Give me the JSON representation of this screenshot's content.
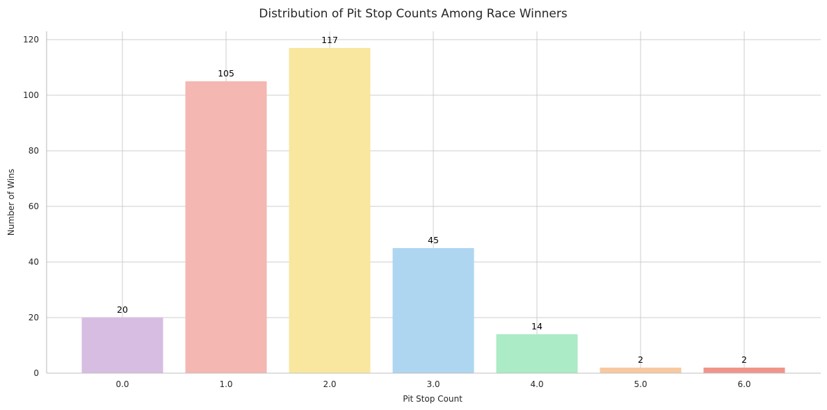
{
  "chart_data": {
    "type": "bar",
    "title": "Distribution of Pit Stop Counts Among Race Winners",
    "xlabel": "Pit Stop Count",
    "ylabel": "Number of Wins",
    "categories": [
      "0.0",
      "1.0",
      "2.0",
      "3.0",
      "4.0",
      "5.0",
      "6.0"
    ],
    "values": [
      20,
      105,
      117,
      45,
      14,
      2,
      2
    ],
    "data_labels": [
      "20",
      "105",
      "117",
      "45",
      "14",
      "2",
      "2"
    ],
    "bar_colors": [
      "#d7bde2",
      "#f5b7b1",
      "#f9e79f",
      "#aed6f1",
      "#abebc6",
      "#f8c9a0",
      "#f1948a"
    ],
    "ylim": [
      0,
      123
    ],
    "yticks": [
      0,
      20,
      40,
      60,
      80,
      100,
      120
    ],
    "ytick_labels": [
      "0",
      "20",
      "40",
      "60",
      "80",
      "100",
      "120"
    ],
    "grid": true,
    "legend": "none"
  }
}
